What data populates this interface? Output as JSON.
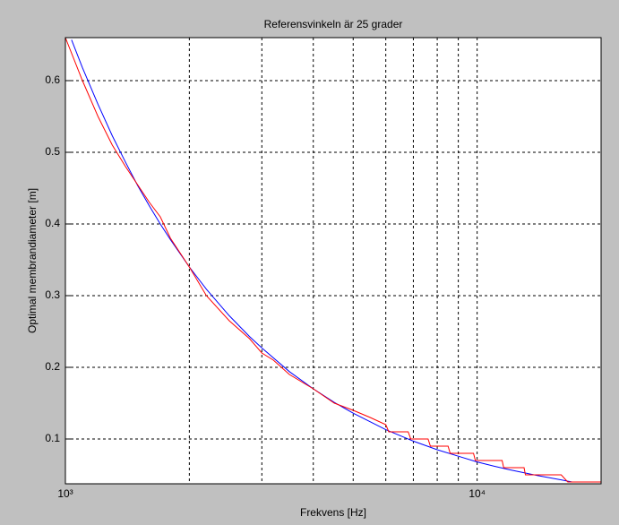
{
  "chart_data": {
    "type": "line",
    "title": "Referensvinkeln är 25 grader",
    "xlabel": "Frekvens [Hz]",
    "ylabel": "Optimal membrandiameter [m]",
    "xscale": "log",
    "xlim": [
      1000,
      20000
    ],
    "ylim": [
      0.0375,
      0.66
    ],
    "xticks": [
      {
        "value": 1000,
        "label": "10³"
      },
      {
        "value": 10000,
        "label": "10⁴"
      }
    ],
    "xminor_ticks": [
      2000,
      3000,
      4000,
      5000,
      6000,
      7000,
      8000,
      9000,
      20000
    ],
    "yticks": [
      0.1,
      0.2,
      0.3,
      0.4,
      0.5,
      0.6
    ],
    "grid": true,
    "series": [
      {
        "color": "#0000ff",
        "x": [
          1035,
          1100,
          1200,
          1300,
          1400,
          1500,
          1600,
          1700,
          1800,
          2000,
          2200,
          2500,
          2800,
          3000,
          3500,
          4000,
          4500,
          5000,
          6000,
          7000,
          8000,
          9000,
          10000,
          11000,
          12000,
          14000,
          16000,
          17000
        ],
        "values": [
          0.657,
          0.618,
          0.567,
          0.523,
          0.486,
          0.453,
          0.425,
          0.4,
          0.378,
          0.34,
          0.309,
          0.272,
          0.243,
          0.227,
          0.194,
          0.17,
          0.151,
          0.136,
          0.113,
          0.097,
          0.085,
          0.076,
          0.068,
          0.062,
          0.057,
          0.049,
          0.043,
          0.04
        ]
      },
      {
        "color": "#ff0000",
        "x": [
          1000,
          1100,
          1200,
          1300,
          1400,
          1600,
          1700,
          1800,
          2000,
          2200,
          2500,
          2800,
          3000,
          3200,
          3500,
          4000,
          4500,
          5000,
          5500,
          6000,
          6100,
          6800,
          6900,
          7600,
          7700,
          8500,
          8600,
          9800,
          9900,
          11500,
          11600,
          13000,
          13100,
          16000,
          16600,
          20000
        ],
        "values": [
          0.66,
          0.6,
          0.55,
          0.51,
          0.48,
          0.43,
          0.41,
          0.38,
          0.34,
          0.3,
          0.265,
          0.24,
          0.22,
          0.21,
          0.19,
          0.17,
          0.15,
          0.14,
          0.13,
          0.12,
          0.11,
          0.11,
          0.1,
          0.1,
          0.09,
          0.09,
          0.08,
          0.08,
          0.07,
          0.07,
          0.06,
          0.06,
          0.05,
          0.05,
          0.04,
          0.04
        ]
      }
    ]
  }
}
